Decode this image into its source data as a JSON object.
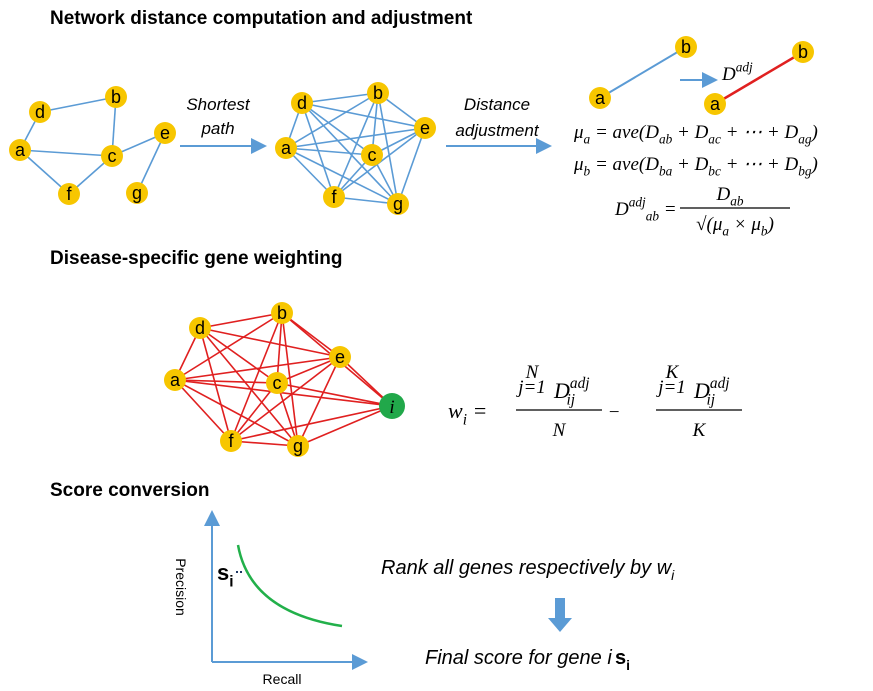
{
  "network": {
    "title": "Network distance computation and adjustment",
    "graph_nodes": [
      "d",
      "b",
      "a",
      "c",
      "e",
      "f",
      "g"
    ],
    "shortest_path": [
      "Shortest",
      "path"
    ],
    "complete_nodes": [
      "d",
      "b",
      "a",
      "c",
      "e",
      "f",
      "g"
    ],
    "distance_adjustment": [
      "Distance",
      "adjustment"
    ],
    "pair_before": [
      "a",
      "b"
    ],
    "pair_label": [
      {
        "t": "D",
        "sup": "adj"
      }
    ],
    "pair_after": [
      "a",
      "b"
    ],
    "mu_a": [
      {
        "t": "μ",
        "sub": "a"
      },
      {
        "t": " = ave(D",
        "sub": "ab"
      },
      {
        "t": " + D",
        "sub": "ac"
      },
      {
        "t": " + ⋯ + D",
        "sub": "ag"
      },
      {
        "t": ")"
      }
    ],
    "mu_b": [
      {
        "t": "μ",
        "sub": "b"
      },
      {
        "t": " = ave(D",
        "sub": "ba"
      },
      {
        "t": " + D",
        "sub": "bc"
      },
      {
        "t": " + ⋯ + D",
        "sub": "bg"
      },
      {
        "t": ")"
      }
    ],
    "dadj_lhs": [
      {
        "t": "D",
        "sup": "adj"
      },
      {
        "sub": "ab"
      },
      {
        "t": " ="
      }
    ],
    "dadj_num": [
      {
        "t": "D",
        "sub": "ab"
      }
    ],
    "dadj_den": [
      {
        "t": "√(μ",
        "sub": "a"
      },
      {
        "t": " × μ",
        "sub": "b"
      },
      {
        "t": ")"
      }
    ]
  },
  "weighting": {
    "title": "Disease-specific gene weighting",
    "nodes": [
      "d",
      "b",
      "a",
      "c",
      "e",
      "f",
      "g"
    ],
    "target": "i",
    "w_lhs": [
      {
        "t": "w",
        "sub": "i"
      },
      {
        "t": " ="
      }
    ],
    "term1": {
      "upper": "N",
      "lower": "j=1",
      "run": [
        {
          "t": "D",
          "sub": "ij",
          "sup": "adj"
        }
      ],
      "den": "N"
    },
    "minus": "−",
    "term2": {
      "upper": "K",
      "lower": "j=1",
      "run": [
        {
          "t": "D",
          "sub": "ij",
          "sup": "adj"
        }
      ],
      "den": "K"
    }
  },
  "score": {
    "title": "Score conversion",
    "y_label": "Precision",
    "x_label": "Recall",
    "s_label": [
      {
        "t": "s",
        "sub": "i"
      }
    ],
    "rank": [
      {
        "t": "Rank all genes respectively by w",
        "sub": "i"
      }
    ],
    "final": [
      {
        "t": "Final score for gene i : "
      }
    ],
    "final_s": [
      {
        "t": "s",
        "sub": "i"
      }
    ]
  }
}
